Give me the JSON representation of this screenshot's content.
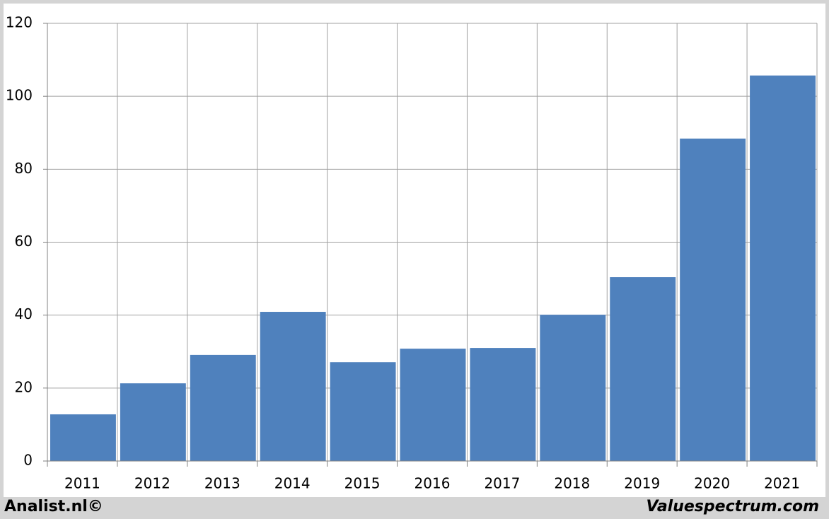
{
  "chart_data": {
    "type": "bar",
    "categories": [
      "2011",
      "2012",
      "2013",
      "2014",
      "2015",
      "2016",
      "2017",
      "2018",
      "2019",
      "2020",
      "2021"
    ],
    "values": [
      12.8,
      21.3,
      29.1,
      40.9,
      27.1,
      30.8,
      31.0,
      40.1,
      50.4,
      88.4,
      105.7
    ],
    "color": "#4f81bd",
    "ylim": [
      0,
      120
    ],
    "yticks": [
      0,
      20,
      40,
      60,
      80,
      100,
      120
    ],
    "grid": true,
    "footer_left": "Analist.nl©",
    "footer_right": "Valuespectrum.com"
  }
}
